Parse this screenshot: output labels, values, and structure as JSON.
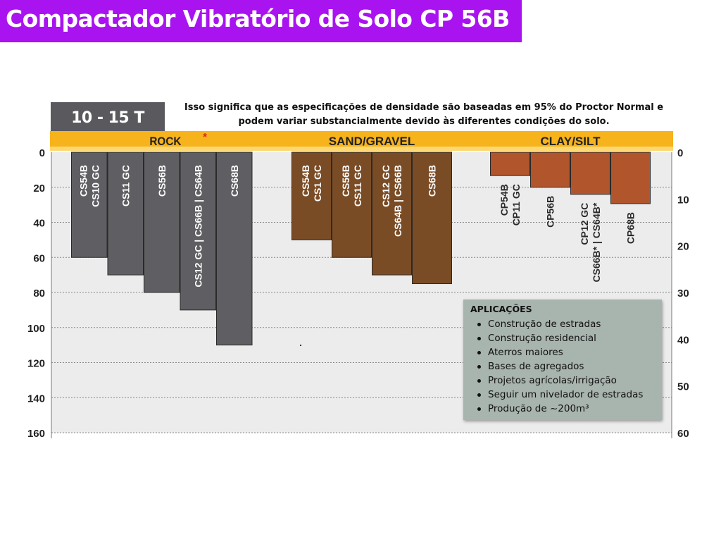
{
  "page": {
    "title": "Compactador Vibratório de Solo CP 56B"
  },
  "note": "Isso significa que as especificações de densidade são baseadas em 95% do Proctor Normal e podem variar substancialmente devido às diferentes condições do solo.",
  "applications": {
    "heading": "APLICAÇÕES",
    "items": [
      "Construção de estradas",
      "Construção residencial",
      "Aterros maiores",
      "Bases de agregados",
      "Projetos agrícolas/irrigação",
      "Seguir um nivelador de estradas",
      "Produção de ~200m³"
    ]
  },
  "chart_data": {
    "type": "bar",
    "weight_class": "10 - 15 T",
    "marker": "*",
    "left_axis": {
      "ticks": [
        "0",
        "20",
        "40",
        "60",
        "80",
        "100",
        "120",
        "140",
        "160"
      ],
      "ylim": [
        0,
        160
      ],
      "inverted": true
    },
    "right_axis": {
      "ticks": [
        "0",
        "10",
        "20",
        "30",
        "40",
        "50",
        "60"
      ],
      "ylim": [
        0,
        60
      ],
      "inverted": true
    },
    "grid": true,
    "groups": [
      {
        "name": "ROCK",
        "color": "#5f5f63",
        "axis": "left",
        "bars": [
          {
            "lines": [
              "CS54B",
              "CS10 GC"
            ],
            "value": 60
          },
          {
            "lines": [
              "CS11 GC"
            ],
            "value": 70
          },
          {
            "lines": [
              "CS56B"
            ],
            "value": 80
          },
          {
            "lines": [
              "CS12 GC | CS66B | CS64B"
            ],
            "value": 90
          },
          {
            "lines": [
              "CS68B"
            ],
            "value": 110
          }
        ]
      },
      {
        "name": "SAND/GRAVEL",
        "color": "#7a4c26",
        "axis": "left",
        "bars": [
          {
            "lines": [
              "CS54B",
              "CS1 GC"
            ],
            "value": 50
          },
          {
            "lines": [
              "CS56B",
              "CS11 GC"
            ],
            "value": 60
          },
          {
            "lines": [
              "CS12 GC",
              "CS64B | CS66B"
            ],
            "value": 70
          },
          {
            "lines": [
              "CS68B"
            ],
            "value": 75
          }
        ]
      },
      {
        "name": "CLAY/SILT",
        "color": "#b0552c",
        "axis": "right",
        "bars": [
          {
            "lines": [
              "CP54B",
              "CP11 GC"
            ],
            "value": 5
          },
          {
            "lines": [
              "CP56B"
            ],
            "value": 7.5
          },
          {
            "lines": [
              "CP12 GC",
              "CS66B* | CS64B*"
            ],
            "value": 9
          },
          {
            "lines": [
              "CP68B"
            ],
            "value": 11
          }
        ]
      }
    ]
  }
}
